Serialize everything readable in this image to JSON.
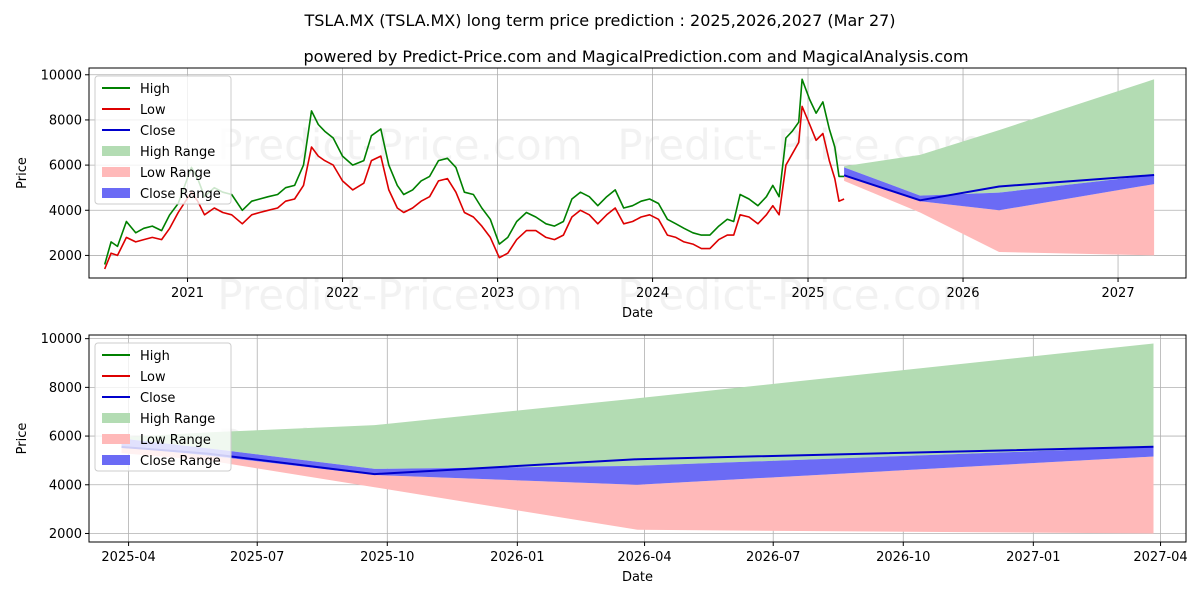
{
  "title": "TSLA.MX (TSLA.MX) long term price prediction : 2025,2026,2027 (Mar 27)",
  "subtitle": "powered by Predict-Price.com and MagicalPrediction.com and MagicalAnalysis.com",
  "watermark": "Predict-Price.com",
  "colors": {
    "high": "#008000",
    "low": "#dd0000",
    "close": "#0000cc",
    "high_range": "#b3dcb3",
    "low_range": "#ffb9b9",
    "close_range": "#6b6bf5",
    "grid": "#b0b0b0"
  },
  "legend": {
    "high": "High",
    "low": "Low",
    "close": "Close",
    "high_range": "High Range",
    "low_range": "Low Range",
    "close_range": "Close Range"
  },
  "chart_data": [
    {
      "type": "line",
      "xlabel": "Date",
      "ylabel": "Price",
      "xlim": [
        "2020-05-14",
        "2027-06-10"
      ],
      "ylim": [
        1000,
        10300
      ],
      "x_ticks": [
        {
          "date": "2021-01-01",
          "label": "2021"
        },
        {
          "date": "2022-01-01",
          "label": "2022"
        },
        {
          "date": "2023-01-01",
          "label": "2023"
        },
        {
          "date": "2024-01-01",
          "label": "2024"
        },
        {
          "date": "2025-01-01",
          "label": "2025"
        },
        {
          "date": "2026-01-01",
          "label": "2026"
        },
        {
          "date": "2027-01-01",
          "label": "2027"
        }
      ],
      "y_ticks": [
        2000,
        4000,
        6000,
        8000,
        10000
      ],
      "grid": true,
      "legend_position": "top-left",
      "history": {
        "dates": [
          "2020-06-20",
          "2020-07-05",
          "2020-07-20",
          "2020-08-10",
          "2020-09-01",
          "2020-09-20",
          "2020-10-10",
          "2020-11-01",
          "2020-11-20",
          "2020-12-10",
          "2021-01-10",
          "2021-01-25",
          "2021-02-10",
          "2021-03-05",
          "2021-03-25",
          "2021-04-15",
          "2021-05-10",
          "2021-06-01",
          "2021-06-20",
          "2021-07-10",
          "2021-08-01",
          "2021-08-20",
          "2021-09-10",
          "2021-10-01",
          "2021-10-20",
          "2021-11-05",
          "2021-11-20",
          "2021-12-10",
          "2022-01-01",
          "2022-01-25",
          "2022-02-20",
          "2022-03-10",
          "2022-04-01",
          "2022-04-20",
          "2022-05-10",
          "2022-05-25",
          "2022-06-15",
          "2022-07-05",
          "2022-07-25",
          "2022-08-15",
          "2022-09-05",
          "2022-09-25",
          "2022-10-15",
          "2022-11-05",
          "2022-11-25",
          "2022-12-15",
          "2023-01-05",
          "2023-01-25",
          "2023-02-15",
          "2023-03-10",
          "2023-04-01",
          "2023-04-25",
          "2023-05-15",
          "2023-06-05",
          "2023-06-25",
          "2023-07-15",
          "2023-08-05",
          "2023-08-25",
          "2023-09-15",
          "2023-10-05",
          "2023-10-25",
          "2023-11-15",
          "2023-12-05",
          "2023-12-25",
          "2024-01-15",
          "2024-02-05",
          "2024-02-25",
          "2024-03-15",
          "2024-04-05",
          "2024-04-25",
          "2024-05-15",
          "2024-06-05",
          "2024-06-25",
          "2024-07-10",
          "2024-07-25",
          "2024-08-15",
          "2024-09-05",
          "2024-09-25",
          "2024-10-10",
          "2024-10-25",
          "2024-11-10",
          "2024-11-25",
          "2024-12-10",
          "2024-12-18",
          "2025-01-05",
          "2025-01-20",
          "2025-02-05",
          "2025-02-20",
          "2025-03-05",
          "2025-03-15",
          "2025-03-27"
        ],
        "high": [
          1600,
          2600,
          2400,
          3500,
          3000,
          3200,
          3300,
          3100,
          3800,
          4300,
          5900,
          5400,
          4600,
          5000,
          4800,
          4700,
          4000,
          4400,
          4500,
          4600,
          4700,
          5000,
          5100,
          6000,
          8400,
          7800,
          7500,
          7200,
          6400,
          6000,
          6200,
          7300,
          7600,
          6000,
          5100,
          4700,
          4900,
          5300,
          5500,
          6200,
          6300,
          5900,
          4800,
          4700,
          4100,
          3600,
          2500,
          2800,
          3500,
          3900,
          3700,
          3400,
          3300,
          3500,
          4500,
          4800,
          4600,
          4200,
          4600,
          4900,
          4100,
          4200,
          4400,
          4500,
          4300,
          3600,
          3400,
          3200,
          3000,
          2900,
          2900,
          3300,
          3600,
          3500,
          4700,
          4500,
          4200,
          4600,
          5100,
          4600,
          7200,
          7500,
          7900,
          9800,
          8900,
          8300,
          8800,
          7600,
          6800,
          5500,
          5500
        ],
        "low": [
          1400,
          2100,
          2000,
          2800,
          2600,
          2700,
          2800,
          2700,
          3200,
          3900,
          4800,
          4400,
          3800,
          4100,
          3900,
          3800,
          3400,
          3800,
          3900,
          4000,
          4100,
          4400,
          4500,
          5100,
          6800,
          6400,
          6200,
          6000,
          5300,
          4900,
          5200,
          6200,
          6400,
          4900,
          4100,
          3900,
          4100,
          4400,
          4600,
          5300,
          5400,
          4800,
          3900,
          3700,
          3300,
          2800,
          1900,
          2100,
          2700,
          3100,
          3100,
          2800,
          2700,
          2900,
          3700,
          4000,
          3800,
          3400,
          3800,
          4100,
          3400,
          3500,
          3700,
          3800,
          3600,
          2900,
          2800,
          2600,
          2500,
          2300,
          2300,
          2700,
          2900,
          2900,
          3800,
          3700,
          3400,
          3800,
          4200,
          3800,
          6000,
          6500,
          7000,
          8600,
          7800,
          7100,
          7400,
          6200,
          5400,
          4400,
          4500
        ]
      },
      "forecast": {
        "dates": [
          "2025-03-27",
          "2025-09-22",
          "2026-03-27",
          "2027-03-27"
        ],
        "close": [
          5550,
          4440,
          5050,
          5560
        ],
        "close_upper": [
          5900,
          4650,
          4780,
          5560
        ],
        "close_lower": [
          5550,
          4400,
          4000,
          5160
        ],
        "high_upper": [
          5950,
          6450,
          7550,
          9800
        ],
        "low_lower": [
          5300,
          3900,
          2150,
          2000
        ]
      }
    },
    {
      "type": "area",
      "xlabel": "Date",
      "ylabel": "Price",
      "xlim": [
        "2025-03-04",
        "2027-04-19"
      ],
      "ylim": [
        1650,
        10150
      ],
      "x_ticks": [
        {
          "date": "2025-04-01",
          "label": "2025-04"
        },
        {
          "date": "2025-07-01",
          "label": "2025-07"
        },
        {
          "date": "2025-10-01",
          "label": "2025-10"
        },
        {
          "date": "2026-01-01",
          "label": "2026-01"
        },
        {
          "date": "2026-04-01",
          "label": "2026-04"
        },
        {
          "date": "2026-07-01",
          "label": "2026-07"
        },
        {
          "date": "2026-10-01",
          "label": "2026-10"
        },
        {
          "date": "2027-01-01",
          "label": "2027-01"
        },
        {
          "date": "2027-04-01",
          "label": "2027-04"
        }
      ],
      "y_ticks": [
        2000,
        4000,
        6000,
        8000,
        10000
      ],
      "grid": true,
      "legend_position": "top-left",
      "forecast": {
        "dates": [
          "2025-03-27",
          "2025-05-27",
          "2025-09-22",
          "2026-03-27",
          "2027-03-27"
        ],
        "close": [
          5550,
          5280,
          4440,
          5050,
          5560
        ],
        "close_upper": [
          5900,
          5500,
          4650,
          4780,
          5560
        ],
        "close_lower": [
          5550,
          5200,
          4400,
          4000,
          5160
        ],
        "high_upper": [
          5950,
          6150,
          6450,
          7550,
          9800
        ],
        "low_lower": [
          5300,
          5000,
          3900,
          2150,
          2000
        ]
      }
    }
  ]
}
